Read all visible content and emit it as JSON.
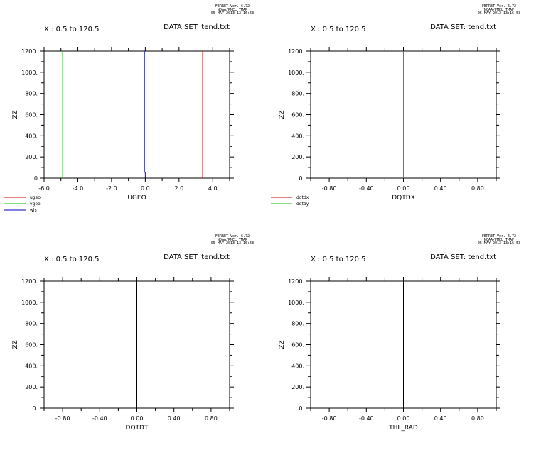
{
  "chart_data": [
    {
      "type": "line",
      "stamp": [
        "FERRET Ver. 6.72",
        "NOAA/PMEL TMAP",
        "05-MAY-2013 13:16:53"
      ],
      "header_left": "X : 0.5 to 120.5",
      "header_right": "DATA SET: tend.txt",
      "xlabel": "UGEO",
      "ylabel": "ZZ",
      "xlim": [
        -6.0,
        5.0
      ],
      "xticks": [
        -6.0,
        -4.0,
        -2.0,
        0.0,
        2.0,
        4.0
      ],
      "xtick_labels": [
        "-6.0",
        "-4.0",
        "-2.0",
        "0.0",
        "2.0",
        "4.0"
      ],
      "ylim": [
        0,
        1200
      ],
      "yticks": [
        0,
        200,
        400,
        600,
        800,
        1000,
        1200
      ],
      "ytick_labels": [
        "0",
        "200.",
        "400.",
        "600.",
        "800.",
        "1000.",
        "1200."
      ],
      "series": [
        {
          "name": "ugeo",
          "color": "#d00000",
          "x": [
            3.4,
            3.4
          ],
          "y": [
            0,
            1200
          ]
        },
        {
          "name": "vgeo",
          "color": "#00c000",
          "x": [
            -4.9,
            -4.9
          ],
          "y": [
            0,
            1200
          ]
        },
        {
          "name": "wls",
          "color": "#0000c0",
          "x": [
            0.0,
            0.0,
            -0.05,
            -0.05
          ],
          "y": [
            0,
            50,
            60,
            1200
          ]
        }
      ]
    },
    {
      "type": "line",
      "stamp": [
        "FERRET Ver. 6.72",
        "NOAA/PMEL TMAP",
        "05-MAY-2013 13:16:53"
      ],
      "header_left": "X : 0.5 to 120.5",
      "header_right": "DATA SET: tend.txt",
      "xlabel": "DQTDX",
      "ylabel": "ZZ",
      "xlim": [
        -1.0,
        1.0
      ],
      "xticks": [
        -0.8,
        -0.4,
        0.0,
        0.4,
        0.8
      ],
      "xtick_labels": [
        "-0.80",
        "-0.40",
        "0.00",
        "0.40",
        "0.80"
      ],
      "ylim": [
        0,
        1200
      ],
      "yticks": [
        0,
        200,
        400,
        600,
        800,
        1000,
        1200
      ],
      "ytick_labels": [
        "0.",
        "200.",
        "400.",
        "600.",
        "800.",
        "1000.",
        "1200."
      ],
      "series": [
        {
          "name": "dqtdx",
          "color": "#d00000",
          "x": [
            0.0,
            0.0
          ],
          "y": [
            0,
            1200
          ]
        },
        {
          "name": "dqtdy",
          "color": "#00c000",
          "x": [
            0.0,
            0.0
          ],
          "y": [
            0,
            1200
          ]
        }
      ]
    },
    {
      "type": "line",
      "stamp": [
        "FERRET Ver. 6.72",
        "NOAA/PMEL TMAP",
        "05-MAY-2013 13:16:53"
      ],
      "header_left": "X : 0.5 to 120.5",
      "header_right": "DATA SET: tend.txt",
      "xlabel": "DQTDT",
      "ylabel": "ZZ",
      "xlim": [
        -1.0,
        1.0
      ],
      "xticks": [
        -0.8,
        -0.4,
        0.0,
        0.4,
        0.8
      ],
      "xtick_labels": [
        "-0.80",
        "-0.40",
        "0.00",
        "0.40",
        "0.80"
      ],
      "ylim": [
        0,
        1200
      ],
      "yticks": [
        0,
        200,
        400,
        600,
        800,
        1000,
        1200
      ],
      "ytick_labels": [
        "0.",
        "200.",
        "400.",
        "600.",
        "800.",
        "1000.",
        "1200."
      ],
      "series": [
        {
          "color": "#000000",
          "x": [
            0.0,
            0.0
          ],
          "y": [
            0,
            1200
          ]
        }
      ]
    },
    {
      "type": "line",
      "stamp": [
        "FERRET Ver. 6.72",
        "NOAA/PMEL TMAP",
        "05-MAY-2013 13:16:53"
      ],
      "header_left": "X : 0.5 to 120.5",
      "header_right": "DATA SET: tend.txt",
      "xlabel": "THL_RAD",
      "ylabel": "ZZ",
      "xlim": [
        -1.0,
        1.0
      ],
      "xticks": [
        -0.8,
        -0.4,
        0.0,
        0.4,
        0.8
      ],
      "xtick_labels": [
        "-0.80",
        "-0.40",
        "0.00",
        "0.40",
        "0.80"
      ],
      "ylim": [
        0,
        1200
      ],
      "yticks": [
        0,
        200,
        400,
        600,
        800,
        1000,
        1200
      ],
      "ytick_labels": [
        "0.",
        "200.",
        "400.",
        "600.",
        "800.",
        "1000.",
        "1200."
      ],
      "series": [
        {
          "color": "#000000",
          "x": [
            0.0,
            0.0
          ],
          "y": [
            0,
            1200
          ]
        }
      ]
    }
  ]
}
